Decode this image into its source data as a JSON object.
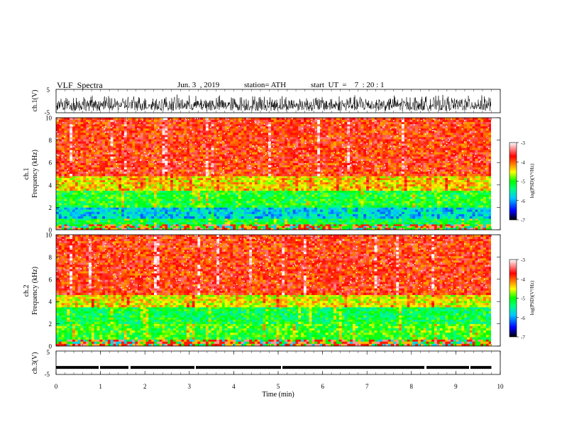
{
  "header": {
    "title": "VLF  Spectra",
    "date": "Jun. 3  , 2019",
    "station": "station= ATH",
    "start": "start  UT  =    7  : 20 : 1"
  },
  "chart_data": [
    {
      "type": "line",
      "panel": "ch1-waveform",
      "ylabel": "ch.1(V)",
      "ylim": [
        -5,
        5
      ],
      "ytick_labels": [
        "5",
        "-5"
      ],
      "xlim": [
        0,
        10
      ],
      "data_extent_min": [
        0,
        9.8
      ],
      "series": [
        {
          "values_note_range": [
            -3.5,
            3.5
          ]
        }
      ]
    },
    {
      "type": "heatmap",
      "panel": "ch1-spectrogram",
      "ylabel": "ch.1\nFrequency  (kHz)",
      "ylabel_line1": "ch.1",
      "ylabel_line2": "Frequency  (kHz)",
      "ylim": [
        0,
        10
      ],
      "yticks": [
        0,
        2,
        4,
        6,
        8,
        10
      ],
      "ytick_labels": [
        "0",
        "2",
        "4",
        "6",
        "8",
        "10"
      ],
      "xlim": [
        0,
        10
      ],
      "data_extent_min": [
        0,
        9.8
      ],
      "bands": [
        {
          "from_khz": 0.0,
          "to_khz": 0.5,
          "level": "mixed"
        },
        {
          "from_khz": 0.5,
          "to_khz": 1.0,
          "level": -5.2
        },
        {
          "from_khz": 1.0,
          "to_khz": 2.0,
          "level": -5.8
        },
        {
          "from_khz": 2.0,
          "to_khz": 3.5,
          "level": -5.1
        },
        {
          "from_khz": 3.5,
          "to_khz": 4.8,
          "level": -4.4
        },
        {
          "from_khz": 4.8,
          "to_khz": 10.0,
          "level": -3.8
        }
      ],
      "colorbar": {
        "label": "log(PSD)(V²/Hz)",
        "range": [
          -7,
          -3
        ],
        "tick_labels": [
          "-3",
          "-4",
          "-5",
          "-6",
          "-7"
        ]
      }
    },
    {
      "type": "heatmap",
      "panel": "ch2-spectrogram",
      "ylabel_line1": "ch.2",
      "ylabel_line2": "Frequency  (kHz)",
      "ylim": [
        0,
        10
      ],
      "yticks": [
        0,
        2,
        4,
        6,
        8,
        10
      ],
      "ytick_labels": [
        "0",
        "2",
        "4",
        "6",
        "8",
        "10"
      ],
      "xlim": [
        0,
        10
      ],
      "data_extent_min": [
        0,
        9.8
      ],
      "bands": [
        {
          "from_khz": 0.0,
          "to_khz": 0.6,
          "level": "mixed"
        },
        {
          "from_khz": 0.6,
          "to_khz": 2.0,
          "level": -5.0
        },
        {
          "from_khz": 2.0,
          "to_khz": 3.5,
          "level": -5.2
        },
        {
          "from_khz": 3.5,
          "to_khz": 4.6,
          "level": -4.5
        },
        {
          "from_khz": 4.6,
          "to_khz": 10.0,
          "level": -3.8
        }
      ],
      "colorbar": {
        "label": "log(PSD)(V²/Hz)",
        "range": [
          -7,
          -3
        ],
        "tick_labels": [
          "-3",
          "-4",
          "-5",
          "-6",
          "-7"
        ]
      }
    },
    {
      "type": "line",
      "panel": "ch3-waveform",
      "ylabel": "ch.3(V)",
      "ylim": [
        -5,
        5
      ],
      "ytick_labels": [
        "5",
        "-5"
      ],
      "xlim": [
        0,
        10
      ],
      "xlabel": "Time  (min)",
      "xticks": [
        0,
        1,
        2,
        3,
        4,
        5,
        6,
        7,
        8,
        9,
        10
      ],
      "xtick_labels": [
        "0",
        "1",
        "2",
        "3",
        "4",
        "5",
        "6",
        "7",
        "8",
        "9",
        "10"
      ],
      "series": [
        {
          "constant_value": -2.0
        }
      ]
    }
  ],
  "colors": {
    "colorbar_stops": [
      "#000000",
      "#0000ff",
      "#00c8ff",
      "#00ff80",
      "#00ff00",
      "#ffff00",
      "#ff8000",
      "#ff0000",
      "#ffffff"
    ],
    "wave": "#000000"
  }
}
